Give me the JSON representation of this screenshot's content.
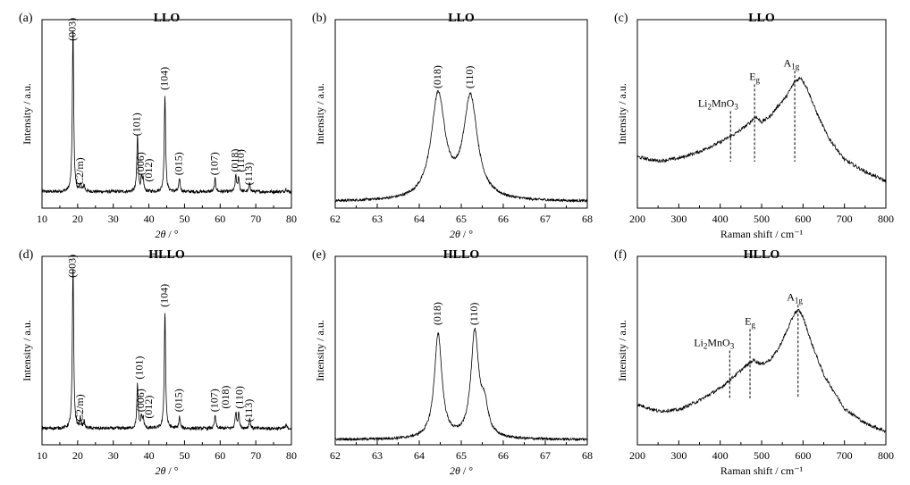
{
  "chart_data": [
    {
      "panel": "(a)",
      "title": "LLO",
      "type": "line",
      "xlabel_symbol": "2θ",
      "xlabel_unit": " / °",
      "ylabel": "Intensity / a.u.",
      "xlim": [
        10,
        80
      ],
      "xticks": [
        10,
        20,
        30,
        40,
        50,
        60,
        70,
        80
      ],
      "xticklabels": [
        "10",
        "20",
        "30",
        "40",
        "50",
        "60",
        "70",
        "80"
      ],
      "ylim": [
        0,
        1.15
      ],
      "baseline": 0.1,
      "width": 0.22,
      "peaks": [
        [
          18.7,
          1.0
        ],
        [
          20.8,
          0.05
        ],
        [
          21.8,
          0.04
        ],
        [
          36.8,
          0.34
        ],
        [
          37.9,
          0.08
        ],
        [
          38.4,
          0.07
        ],
        [
          44.5,
          0.6
        ],
        [
          48.6,
          0.08
        ],
        [
          58.6,
          0.08
        ],
        [
          64.4,
          0.1
        ],
        [
          65.2,
          0.09
        ],
        [
          68.3,
          0.05
        ],
        [
          78.5,
          0.02
        ]
      ],
      "peak_labels": [
        {
          "text": "(003)",
          "x": 18.7,
          "y": 1.02
        },
        {
          "text": "(C2/m)",
          "x": 20.8,
          "y": 0.12
        },
        {
          "text": "(101)",
          "x": 36.8,
          "y": 0.44
        },
        {
          "text": "(006)",
          "x": 37.9,
          "y": 0.2
        },
        {
          "text": "(012)",
          "x": 40.2,
          "y": 0.16
        },
        {
          "text": "(104)",
          "x": 44.5,
          "y": 0.72
        },
        {
          "text": "(015)",
          "x": 48.6,
          "y": 0.2
        },
        {
          "text": "(107)",
          "x": 58.6,
          "y": 0.2
        },
        {
          "text": "(018)",
          "x": 64.4,
          "y": 0.22
        },
        {
          "text": "(110)",
          "x": 66.0,
          "y": 0.22
        },
        {
          "text": "(113)",
          "x": 68.3,
          "y": 0.14
        }
      ]
    },
    {
      "panel": "(b)",
      "title": "LLO",
      "type": "line",
      "xlabel_symbol": "2θ",
      "xlabel_unit": " / °",
      "ylabel": "Intensity / a.u.",
      "xlim": [
        62,
        68
      ],
      "xticks": [
        62,
        63,
        64,
        65,
        66,
        67,
        68
      ],
      "xticklabels": [
        "62",
        "63",
        "64",
        "65",
        "66",
        "67",
        "68"
      ],
      "ylim": [
        0,
        1.45
      ],
      "baseline": 0.05,
      "width": 0.2,
      "peaks": [
        [
          64.45,
          0.8
        ],
        [
          65.22,
          0.78
        ]
      ],
      "peak_labels": [
        {
          "text": "(018)",
          "x": 64.45,
          "y": 0.92
        },
        {
          "text": "(110)",
          "x": 65.22,
          "y": 0.92
        }
      ]
    },
    {
      "panel": "(c)",
      "title": "LLO",
      "type": "line",
      "xlabel": "Raman shift / cm⁻¹",
      "ylabel": "Intensity / a.u.",
      "xlim": [
        200,
        800
      ],
      "xticks": [
        200,
        300,
        400,
        500,
        600,
        700,
        800
      ],
      "xticklabels": [
        "200",
        "300",
        "400",
        "500",
        "600",
        "700",
        "800"
      ],
      "ylim": [
        0,
        1.4
      ],
      "x": [
        200,
        250,
        300,
        350,
        400,
        440,
        470,
        485,
        500,
        520,
        540,
        560,
        580,
        595,
        610,
        630,
        660,
        700,
        750,
        800
      ],
      "y": [
        0.38,
        0.35,
        0.37,
        0.42,
        0.49,
        0.56,
        0.63,
        0.68,
        0.64,
        0.68,
        0.76,
        0.83,
        0.94,
        0.97,
        0.89,
        0.73,
        0.53,
        0.36,
        0.27,
        0.2
      ],
      "annotations": [
        {
          "base": "Li",
          "sub": "2",
          "rest": "MnO",
          "sub2": "3",
          "x": 425,
          "ytop": 0.72,
          "label_x": 395
        },
        {
          "base": "E",
          "sub": "g",
          "x": 483,
          "ytop": 0.92,
          "label_x": 483
        },
        {
          "base": "A",
          "sub": "1g",
          "x": 580,
          "ytop": 1.02,
          "label_x": 572
        }
      ]
    },
    {
      "panel": "(d)",
      "title": "HLLO",
      "type": "line",
      "xlabel_symbol": "2θ",
      "xlabel_unit": " / °",
      "ylabel": "Intensity / a.u.",
      "xlim": [
        10,
        80
      ],
      "xticks": [
        10,
        20,
        30,
        40,
        50,
        60,
        70,
        80
      ],
      "xticklabels": [
        "10",
        "20",
        "30",
        "40",
        "50",
        "60",
        "70",
        "80"
      ],
      "ylim": [
        0,
        1.15
      ],
      "baseline": 0.1,
      "width": 0.22,
      "peaks": [
        [
          18.7,
          1.0
        ],
        [
          20.8,
          0.06
        ],
        [
          21.8,
          0.04
        ],
        [
          36.8,
          0.27
        ],
        [
          37.9,
          0.07
        ],
        [
          38.4,
          0.06
        ],
        [
          44.5,
          0.72
        ],
        [
          48.6,
          0.07
        ],
        [
          58.6,
          0.08
        ],
        [
          64.4,
          0.1
        ],
        [
          65.2,
          0.1
        ],
        [
          68.3,
          0.06
        ],
        [
          78.5,
          0.02
        ]
      ],
      "peak_labels": [
        {
          "text": "(003)",
          "x": 18.7,
          "y": 1.02
        },
        {
          "text": "(C2/m)",
          "x": 20.8,
          "y": 0.12
        },
        {
          "text": "(101)",
          "x": 37.5,
          "y": 0.4
        },
        {
          "text": "(006)",
          "x": 37.9,
          "y": 0.2
        },
        {
          "text": "(012)",
          "x": 40.2,
          "y": 0.16
        },
        {
          "text": "(104)",
          "x": 44.5,
          "y": 0.84
        },
        {
          "text": "(015)",
          "x": 48.6,
          "y": 0.2
        },
        {
          "text": "(107)",
          "x": 58.6,
          "y": 0.2
        },
        {
          "text": "(018)",
          "x": 61.8,
          "y": 0.22
        },
        {
          "text": "(110)",
          "x": 65.6,
          "y": 0.22
        },
        {
          "text": "(113)",
          "x": 68.3,
          "y": 0.14
        }
      ]
    },
    {
      "panel": "(e)",
      "title": "HLLO",
      "type": "line",
      "xlabel_symbol": "2θ",
      "xlabel_unit": " / °",
      "ylabel": "Intensity / a.u.",
      "xlim": [
        62,
        68
      ],
      "xticks": [
        62,
        63,
        64,
        65,
        66,
        67,
        68
      ],
      "xticklabels": [
        "62",
        "63",
        "64",
        "65",
        "66",
        "67",
        "68"
      ],
      "ylim": [
        0,
        1.45
      ],
      "baseline": 0.04,
      "width": 0.11,
      "peaks": [
        [
          64.45,
          0.8
        ],
        [
          65.32,
          0.8
        ],
        [
          65.55,
          0.22
        ]
      ],
      "peak_labels": [
        {
          "text": "(018)",
          "x": 64.45,
          "y": 0.92
        },
        {
          "text": "(110)",
          "x": 65.32,
          "y": 0.92
        }
      ]
    },
    {
      "panel": "(f)",
      "title": "HLLO",
      "type": "line",
      "xlabel": "Raman shift / cm⁻¹",
      "ylabel": "Intensity / a.u.",
      "xlim": [
        200,
        800
      ],
      "xticks": [
        200,
        300,
        400,
        500,
        600,
        700,
        800
      ],
      "xticklabels": [
        "200",
        "300",
        "400",
        "500",
        "600",
        "700",
        "800"
      ],
      "ylim": [
        0,
        1.4
      ],
      "x": [
        200,
        250,
        300,
        350,
        400,
        430,
        460,
        480,
        500,
        520,
        540,
        560,
        580,
        590,
        600,
        620,
        650,
        700,
        750,
        800
      ],
      "y": [
        0.3,
        0.25,
        0.26,
        0.33,
        0.42,
        0.5,
        0.58,
        0.63,
        0.6,
        0.63,
        0.71,
        0.84,
        0.98,
        1.0,
        0.95,
        0.76,
        0.52,
        0.27,
        0.16,
        0.1
      ],
      "annotations": [
        {
          "base": "Li",
          "sub": "2",
          "rest": "MnO",
          "sub2": "3",
          "x": 423,
          "ytop": 0.7,
          "label_x": 385
        },
        {
          "base": "E",
          "sub": "g",
          "x": 472,
          "ytop": 0.86,
          "label_x": 472
        },
        {
          "base": "A",
          "sub": "1g",
          "x": 588,
          "ytop": 1.04,
          "label_x": 580
        }
      ]
    }
  ]
}
